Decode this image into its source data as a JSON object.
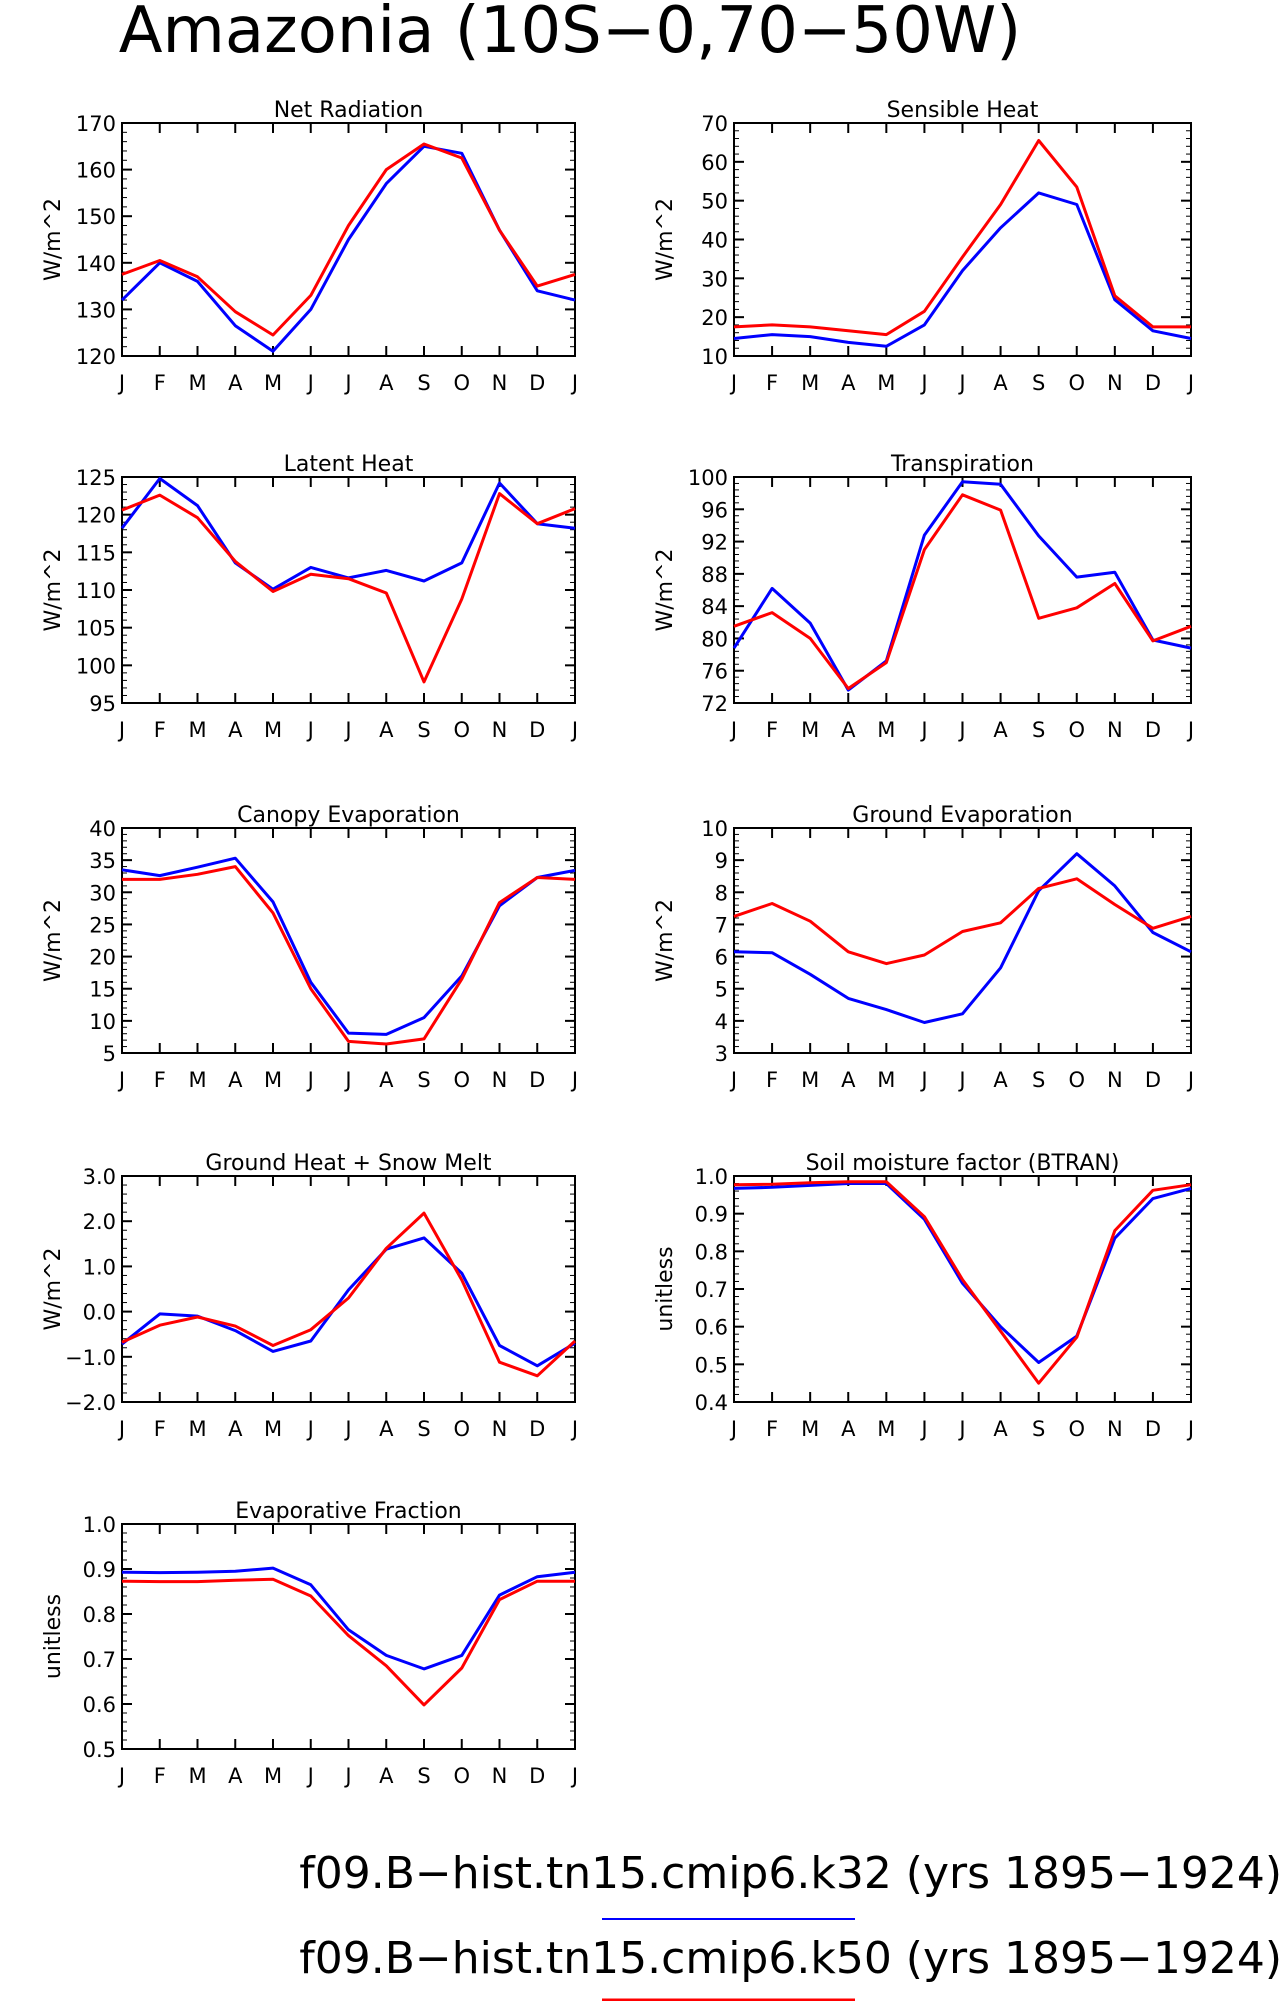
{
  "title": "Amazonia (10S−0,70−50W)",
  "legend": [
    {
      "label": "f09.B−hist.tn15.cmip6.k32 (yrs 1895−1924)",
      "color": "#0000ff"
    },
    {
      "label": "f09.B−hist.tn15.cmip6.k50 (yrs 1895−1924)",
      "color": "#ff0000"
    }
  ],
  "colors": {
    "k32": "#0000ff",
    "k50": "#ff0000"
  },
  "chart_data": [
    {
      "type": "line",
      "title": "Net Radiation",
      "ylabel": "W/m^2",
      "ylim": [
        120,
        170
      ],
      "yticks": [
        "120",
        "130",
        "140",
        "150",
        "160",
        "170"
      ],
      "x": [
        "J",
        "F",
        "M",
        "A",
        "M",
        "J",
        "J",
        "A",
        "S",
        "O",
        "N",
        "D",
        "J"
      ],
      "series": [
        {
          "key": "k32",
          "values": [
            132,
            140,
            136,
            126.5,
            121,
            130,
            145,
            157,
            165,
            163.5,
            147,
            134,
            132
          ]
        },
        {
          "key": "k50",
          "values": [
            137.5,
            140.5,
            137,
            129.5,
            124.5,
            133,
            148,
            160,
            165.5,
            162.5,
            147,
            135,
            137.5
          ]
        }
      ]
    },
    {
      "type": "line",
      "title": "Sensible Heat",
      "ylabel": "W/m^2",
      "ylim": [
        10,
        70
      ],
      "yticks": [
        "10",
        "20",
        "30",
        "40",
        "50",
        "60",
        "70"
      ],
      "x": [
        "J",
        "F",
        "M",
        "A",
        "M",
        "J",
        "J",
        "A",
        "S",
        "O",
        "N",
        "D",
        "J"
      ],
      "series": [
        {
          "key": "k32",
          "values": [
            14.5,
            15.5,
            15,
            13.5,
            12.5,
            18,
            32,
            43,
            52,
            49,
            24.5,
            16.5,
            14.5
          ]
        },
        {
          "key": "k50",
          "values": [
            17.5,
            18,
            17.5,
            16.5,
            15.5,
            21.5,
            35.5,
            49,
            65.5,
            53.5,
            25.5,
            17.5,
            17.5
          ]
        }
      ]
    },
    {
      "type": "line",
      "title": "Latent Heat",
      "ylabel": "W/m^2",
      "ylim": [
        95,
        125
      ],
      "yticks": [
        "95",
        "100",
        "105",
        "110",
        "115",
        "120",
        "125"
      ],
      "x": [
        "J",
        "F",
        "M",
        "A",
        "M",
        "J",
        "J",
        "A",
        "S",
        "O",
        "N",
        "D",
        "J"
      ],
      "series": [
        {
          "key": "k32",
          "values": [
            118.2,
            124.8,
            121.2,
            113.6,
            110.1,
            113,
            111.6,
            112.6,
            111.2,
            113.6,
            124.2,
            118.8,
            118.2
          ]
        },
        {
          "key": "k50",
          "values": [
            120.6,
            122.6,
            119.6,
            113.8,
            109.8,
            112.1,
            111.5,
            109.6,
            97.8,
            108.8,
            122.8,
            118.8,
            120.8
          ]
        }
      ]
    },
    {
      "type": "line",
      "title": "Transpiration",
      "ylabel": "W/m^2",
      "ylim": [
        72,
        100
      ],
      "yticks": [
        "72",
        "76",
        "80",
        "84",
        "88",
        "92",
        "96",
        "100"
      ],
      "x": [
        "J",
        "F",
        "M",
        "A",
        "M",
        "J",
        "J",
        "A",
        "S",
        "O",
        "N",
        "D",
        "J"
      ],
      "series": [
        {
          "key": "k32",
          "values": [
            78.8,
            86.2,
            81.9,
            73.6,
            77.2,
            92.8,
            99.4,
            99.1,
            92.7,
            87.6,
            88.2,
            79.8,
            78.8
          ]
        },
        {
          "key": "k50",
          "values": [
            81.5,
            83.2,
            80,
            73.8,
            77,
            91,
            97.8,
            95.9,
            82.5,
            83.8,
            86.8,
            79.7,
            81.5
          ]
        }
      ]
    },
    {
      "type": "line",
      "title": "Canopy Evaporation",
      "ylabel": "W/m^2",
      "ylim": [
        5,
        40
      ],
      "yticks": [
        "5",
        "10",
        "15",
        "20",
        "25",
        "30",
        "35",
        "40"
      ],
      "x": [
        "J",
        "F",
        "M",
        "A",
        "M",
        "J",
        "J",
        "A",
        "S",
        "O",
        "N",
        "D",
        "J"
      ],
      "series": [
        {
          "key": "k32",
          "values": [
            33.5,
            32.6,
            33.9,
            35.3,
            28.5,
            16,
            8.1,
            7.9,
            10.5,
            17,
            27.9,
            32.3,
            33.4
          ]
        },
        {
          "key": "k50",
          "values": [
            32,
            32,
            32.8,
            34,
            26.8,
            15,
            6.8,
            6.4,
            7.2,
            16.5,
            28.4,
            32.3,
            32
          ]
        }
      ]
    },
    {
      "type": "line",
      "title": "Ground Evaporation",
      "ylabel": "W/m^2",
      "ylim": [
        3,
        10
      ],
      "yticks": [
        "3",
        "4",
        "5",
        "6",
        "7",
        "8",
        "9",
        "10"
      ],
      "x": [
        "J",
        "F",
        "M",
        "A",
        "M",
        "J",
        "J",
        "A",
        "S",
        "O",
        "N",
        "D",
        "J"
      ],
      "series": [
        {
          "key": "k32",
          "values": [
            6.15,
            6.12,
            5.45,
            4.7,
            4.35,
            3.95,
            4.22,
            5.65,
            8.05,
            9.2,
            8.2,
            6.75,
            6.15
          ]
        },
        {
          "key": "k50",
          "values": [
            7.25,
            7.65,
            7.1,
            6.15,
            5.78,
            6.05,
            6.78,
            7.05,
            8.12,
            8.42,
            7.62,
            6.88,
            7.25
          ]
        }
      ]
    },
    {
      "type": "line",
      "title": "Ground Heat + Snow Melt",
      "ylabel": "W/m^2",
      "ylim": [
        -2,
        3
      ],
      "yticks": [
        "−2.0",
        "−1.0",
        "0.0",
        "1.0",
        "2.0",
        "3.0"
      ],
      "x": [
        "J",
        "F",
        "M",
        "A",
        "M",
        "J",
        "J",
        "A",
        "S",
        "O",
        "N",
        "D",
        "J"
      ],
      "series": [
        {
          "key": "k32",
          "values": [
            -0.72,
            -0.05,
            -0.1,
            -0.42,
            -0.88,
            -0.65,
            0.48,
            1.38,
            1.63,
            0.85,
            -0.75,
            -1.2,
            -0.7
          ]
        },
        {
          "key": "k50",
          "values": [
            -0.68,
            -0.3,
            -0.12,
            -0.32,
            -0.75,
            -0.4,
            0.3,
            1.4,
            2.18,
            0.7,
            -1.12,
            -1.42,
            -0.65
          ]
        }
      ]
    },
    {
      "type": "line",
      "title": "Soil moisture factor (BTRAN)",
      "ylabel": "unitless",
      "ylim": [
        0.4,
        1.0
      ],
      "yticks": [
        "0.4",
        "0.5",
        "0.6",
        "0.7",
        "0.8",
        "0.9",
        "1.0"
      ],
      "x": [
        "J",
        "F",
        "M",
        "A",
        "M",
        "J",
        "J",
        "A",
        "S",
        "O",
        "N",
        "D",
        "J"
      ],
      "series": [
        {
          "key": "k32",
          "values": [
            0.967,
            0.97,
            0.975,
            0.98,
            0.98,
            0.885,
            0.715,
            0.6,
            0.505,
            0.575,
            0.835,
            0.94,
            0.967
          ]
        },
        {
          "key": "k50",
          "values": [
            0.977,
            0.978,
            0.982,
            0.985,
            0.985,
            0.892,
            0.725,
            0.588,
            0.45,
            0.572,
            0.855,
            0.962,
            0.977
          ]
        }
      ]
    },
    {
      "type": "line",
      "title": "Evaporative Fraction",
      "ylabel": "unitless",
      "ylim": [
        0.5,
        1.0
      ],
      "yticks": [
        "0.5",
        "0.6",
        "0.7",
        "0.8",
        "0.9",
        "1.0"
      ],
      "x": [
        "J",
        "F",
        "M",
        "A",
        "M",
        "J",
        "J",
        "A",
        "S",
        "O",
        "N",
        "D",
        "J"
      ],
      "series": [
        {
          "key": "k32",
          "values": [
            0.893,
            0.892,
            0.893,
            0.895,
            0.902,
            0.865,
            0.765,
            0.708,
            0.678,
            0.708,
            0.842,
            0.883,
            0.893
          ]
        },
        {
          "key": "k50",
          "values": [
            0.873,
            0.872,
            0.872,
            0.875,
            0.877,
            0.84,
            0.752,
            0.685,
            0.598,
            0.68,
            0.832,
            0.873,
            0.873
          ]
        }
      ]
    }
  ]
}
